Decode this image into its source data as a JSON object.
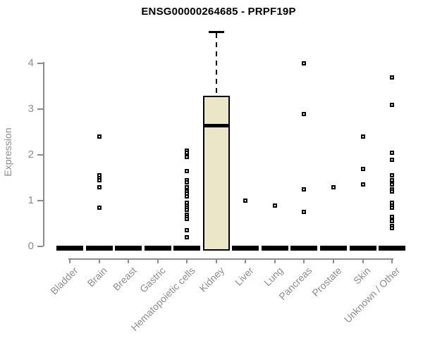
{
  "figure": {
    "title": "ENSG00000264685 - PRPF19P",
    "ylabel": "Expression"
  },
  "chart_data": {
    "type": "boxplot",
    "title": "ENSG00000264685 - PRPF19P",
    "xlabel": "",
    "ylabel": "Expression",
    "ylim": [
      0,
      4.8
    ],
    "yticks": [
      0,
      1,
      2,
      3,
      4
    ],
    "grid": false,
    "legend": null,
    "categories": [
      "Bladder",
      "Brain",
      "Breast",
      "Gastric",
      "Hematopoietic cells",
      "Kidney",
      "Liver",
      "Lung",
      "Pancreas",
      "Prostate",
      "Skin",
      "Unknown / Other"
    ],
    "boxes": [
      {
        "category": "Bladder",
        "q1": 0,
        "median": 0,
        "q3": 0,
        "whisker_low": 0,
        "whisker_high": 0
      },
      {
        "category": "Brain",
        "q1": 0,
        "median": 0,
        "q3": 0,
        "whisker_low": 0,
        "whisker_high": 0
      },
      {
        "category": "Breast",
        "q1": 0,
        "median": 0,
        "q3": 0,
        "whisker_low": 0,
        "whisker_high": 0
      },
      {
        "category": "Gastric",
        "q1": 0,
        "median": 0,
        "q3": 0,
        "whisker_low": 0,
        "whisker_high": 0
      },
      {
        "category": "Hematopoietic cells",
        "q1": 0,
        "median": 0,
        "q3": 0,
        "whisker_low": 0,
        "whisker_high": 0
      },
      {
        "category": "Kidney",
        "q1": 0,
        "median": 2.65,
        "q3": 3.3,
        "whisker_low": 0,
        "whisker_high": 4.7
      },
      {
        "category": "Liver",
        "q1": 0,
        "median": 0,
        "q3": 0,
        "whisker_low": 0,
        "whisker_high": 0
      },
      {
        "category": "Lung",
        "q1": 0,
        "median": 0,
        "q3": 0,
        "whisker_low": 0,
        "whisker_high": 0
      },
      {
        "category": "Pancreas",
        "q1": 0,
        "median": 0,
        "q3": 0,
        "whisker_low": 0,
        "whisker_high": 0
      },
      {
        "category": "Prostate",
        "q1": 0,
        "median": 0,
        "q3": 0,
        "whisker_low": 0,
        "whisker_high": 0
      },
      {
        "category": "Skin",
        "q1": 0,
        "median": 0,
        "q3": 0,
        "whisker_low": 0,
        "whisker_high": 0
      },
      {
        "category": "Unknown / Other",
        "q1": 0,
        "median": 0,
        "q3": 0,
        "whisker_low": 0,
        "whisker_high": 0
      }
    ],
    "points": [
      {
        "category": "Bladder",
        "values": []
      },
      {
        "category": "Brain",
        "values": [
          2.4,
          1.55,
          1.5,
          1.45,
          1.3,
          0.85
        ]
      },
      {
        "category": "Breast",
        "values": []
      },
      {
        "category": "Gastric",
        "values": []
      },
      {
        "category": "Hematopoietic cells",
        "values": [
          2.1,
          2.05,
          1.95,
          1.65,
          1.45,
          1.4,
          1.3,
          1.2,
          1.15,
          1.1,
          0.95,
          0.9,
          0.85,
          0.8,
          0.7,
          0.65,
          0.6,
          0.35,
          0.2
        ]
      },
      {
        "category": "Kidney",
        "values": []
      },
      {
        "category": "Liver",
        "values": [
          1.0
        ]
      },
      {
        "category": "Lung",
        "values": [
          0.9
        ]
      },
      {
        "category": "Pancreas",
        "values": [
          4.0,
          2.9,
          1.25,
          0.75
        ]
      },
      {
        "category": "Prostate",
        "values": [
          1.3
        ]
      },
      {
        "category": "Skin",
        "values": [
          2.4,
          1.7,
          1.35
        ]
      },
      {
        "category": "Unknown / Other",
        "values": [
          3.7,
          3.1,
          2.05,
          1.9,
          1.55,
          1.45,
          1.35,
          1.25,
          1.2,
          0.95,
          0.9,
          0.85,
          0.65,
          0.55,
          0.45,
          0.4
        ]
      }
    ],
    "colors": {
      "box_fill": "#ECE6C9",
      "box_border": "#000000",
      "median": "#000000",
      "point": "#000000",
      "axis": "#8C8C8C",
      "tick_label": "#8C8C8C",
      "title": "#000000",
      "background": "#FFFFFF"
    }
  }
}
